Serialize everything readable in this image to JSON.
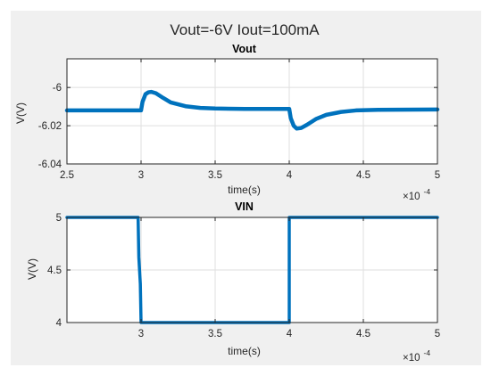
{
  "figure": {
    "title": "Vout=-6V Iout=100mA",
    "background": "#f0f0f0",
    "line_color": "#0072bd"
  },
  "chart_data": [
    {
      "type": "line",
      "title": "Vout",
      "xlabel": "time(s)",
      "ylabel": "V(V)",
      "x_exponent_base": "×10",
      "x_exponent": "-4",
      "xlim": [
        0.00025,
        0.0005
      ],
      "ylim": [
        -6.04,
        -5.985
      ],
      "xticks": [
        0.00025,
        0.0003,
        0.00035,
        0.0004,
        0.00045,
        0.0005
      ],
      "xtick_labels": [
        "2.5",
        "3",
        "3.5",
        "4",
        "4.5",
        "5"
      ],
      "yticks": [
        -6,
        -6.02,
        -6.04
      ],
      "ytick_labels": [
        "-6",
        "-6.02",
        "-6.04"
      ],
      "grid": true,
      "series": [
        {
          "x": [
            0.00025,
            0.0003,
            0.000301,
            0.000303,
            0.000305,
            0.000307,
            0.00031,
            0.000315,
            0.00032,
            0.00033,
            0.00034,
            0.00035,
            0.00037,
            0.0004,
            0.000401,
            0.000403,
            0.000405,
            0.000408,
            0.000412,
            0.000418,
            0.000425,
            0.000435,
            0.000445,
            0.00046,
            0.0005
          ],
          "y": [
            -6.012,
            -6.012,
            -6.0075,
            -6.0035,
            -6.0025,
            -6.0023,
            -6.003,
            -6.0055,
            -6.0078,
            -6.0098,
            -6.0107,
            -6.011,
            -6.0112,
            -6.0112,
            -6.016,
            -6.02,
            -6.0215,
            -6.0212,
            -6.0195,
            -6.0165,
            -6.0143,
            -6.0128,
            -6.012,
            -6.0117,
            -6.0115
          ]
        }
      ]
    },
    {
      "type": "line",
      "title": "VIN",
      "xlabel": "time(s)",
      "ylabel": "V(V)",
      "x_exponent_base": "×10",
      "x_exponent": "-4",
      "xlim": [
        0.00025,
        0.0005
      ],
      "ylim": [
        4,
        5
      ],
      "xticks": [
        0.0003,
        0.00035,
        0.0004,
        0.00045,
        0.0005
      ],
      "xtick_labels": [
        "3",
        "3.5",
        "4",
        "4.5",
        "5"
      ],
      "yticks": [
        5,
        4.5,
        4
      ],
      "ytick_labels": [
        "5",
        "4.5",
        "4"
      ],
      "grid": true,
      "series": [
        {
          "x": [
            0.00025,
            0.000298,
            0.0002985,
            0.0002995,
            0.0003,
            0.0004,
            0.0004,
            0.0005
          ],
          "y": [
            5,
            5,
            4.62,
            4.37,
            4,
            4,
            5,
            5
          ]
        }
      ]
    }
  ]
}
